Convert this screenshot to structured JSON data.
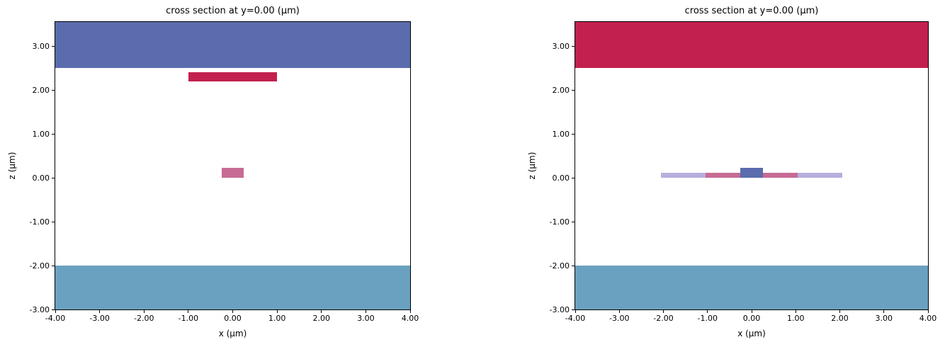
{
  "figure": {
    "background": "#ffffff",
    "text_color": "#000000",
    "spine_color": "#000000"
  },
  "chart_data": [
    {
      "type": "layer-rectangles",
      "title": "cross section at y=0.00 (μm)",
      "xlabel": "x (μm)",
      "ylabel": "z (μm)",
      "xlim": [
        -4.0,
        4.0
      ],
      "ylim": [
        -3.0,
        3.55
      ],
      "grid": false,
      "legend": null,
      "xticks": {
        "values": [
          -4,
          -3,
          -2,
          -1,
          0,
          1,
          2,
          3,
          4
        ],
        "labels": [
          "-4.00",
          "-3.00",
          "-2.00",
          "-1.00",
          "0.00",
          "1.00",
          "2.00",
          "3.00",
          "4.00"
        ]
      },
      "yticks": {
        "values": [
          3,
          2,
          1,
          0,
          -1,
          -2,
          -3
        ],
        "labels": [
          "3.00",
          "2.00",
          "1.00",
          "0.00",
          "-1.00",
          "-2.00",
          "-3.00"
        ]
      },
      "layers": [
        {
          "name": "top-cladding-slab",
          "x": [
            -4.0,
            4.0
          ],
          "z": [
            2.5,
            3.55
          ],
          "color": "#5b6cae"
        },
        {
          "name": "heater-bar",
          "x": [
            -1.0,
            1.0
          ],
          "z": [
            2.2,
            2.4
          ],
          "color": "#c2214e"
        },
        {
          "name": "waveguide-core",
          "x": [
            -0.25,
            0.25
          ],
          "z": [
            0.0,
            0.22
          ],
          "color": "#c76b94"
        },
        {
          "name": "substrate-slab",
          "x": [
            -4.0,
            4.0
          ],
          "z": [
            -3.0,
            -2.0
          ],
          "color": "#6ba1c0"
        }
      ]
    },
    {
      "type": "layer-rectangles",
      "title": "cross section at y=0.00 (μm)",
      "xlabel": "x (μm)",
      "ylabel": "z (μm)",
      "xlim": [
        -4.0,
        4.0
      ],
      "ylim": [
        -3.0,
        3.55
      ],
      "grid": false,
      "legend": null,
      "xticks": {
        "values": [
          -4,
          -3,
          -2,
          -1,
          0,
          1,
          2,
          3,
          4
        ],
        "labels": [
          "-4.00",
          "-3.00",
          "-2.00",
          "-1.00",
          "0.00",
          "1.00",
          "2.00",
          "3.00",
          "4.00"
        ]
      },
      "yticks": {
        "values": [
          3,
          2,
          1,
          0,
          -1,
          -2,
          -3
        ],
        "labels": [
          "3.00",
          "2.00",
          "1.00",
          "0.00",
          "-1.00",
          "-2.00",
          "-3.00"
        ]
      },
      "layers": [
        {
          "name": "top-cladding-slab",
          "x": [
            -4.0,
            4.0
          ],
          "z": [
            2.5,
            3.55
          ],
          "color": "#c2214e"
        },
        {
          "name": "outer-slab-strip",
          "x": [
            -2.05,
            2.05
          ],
          "z": [
            0.0,
            0.11
          ],
          "color": "#b7aedd"
        },
        {
          "name": "inner-slab-strip",
          "x": [
            -1.05,
            1.05
          ],
          "z": [
            0.0,
            0.11
          ],
          "color": "#c76b94"
        },
        {
          "name": "waveguide-core",
          "x": [
            -0.25,
            0.25
          ],
          "z": [
            0.0,
            0.22
          ],
          "color": "#5b6cae"
        },
        {
          "name": "substrate-slab",
          "x": [
            -4.0,
            4.0
          ],
          "z": [
            -3.0,
            -2.0
          ],
          "color": "#6ba1c0"
        }
      ]
    }
  ]
}
